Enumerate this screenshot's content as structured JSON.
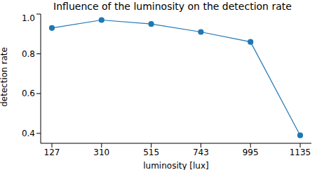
{
  "chart_data": {
    "type": "line",
    "title": "Influence of the luminosity on the detection rate",
    "x_label": "luminosity [lux]",
    "y_label": "detection rate",
    "categories": [
      "127",
      "310",
      "515",
      "743",
      "995",
      "1135"
    ],
    "values": [
      0.93,
      0.97,
      0.95,
      0.91,
      0.86,
      0.39
    ],
    "color": "#1f77b4",
    "marker": "circle",
    "ylim": [
      0.35,
      1.0
    ],
    "yticks": [
      0.4,
      0.6,
      0.8,
      {
        "value": 1,
        "label": "1.0"
      }
    ],
    "grid": false
  }
}
